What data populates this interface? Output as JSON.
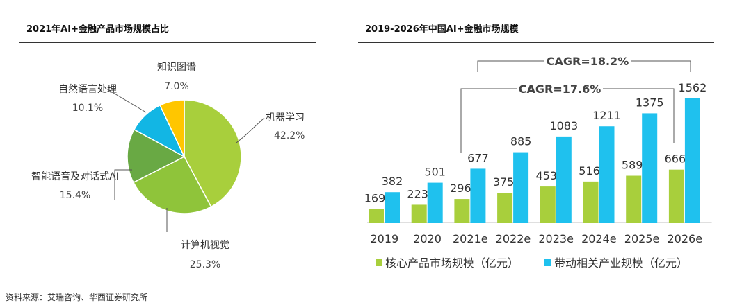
{
  "left_panel": {
    "title": "2021年AI+金融产品市场规模占比"
  },
  "right_panel": {
    "title": "2019-2026年中国AI+金融市场规模"
  },
  "source": "资料来源：艾瑞咨询、华西证券研究所",
  "chart_data": [
    {
      "type": "pie",
      "title": "2021年AI+金融产品市场规模占比",
      "slices": [
        {
          "label": "机器学习",
          "value": 42.2,
          "display": "42.2%",
          "color": "#a8cf3c"
        },
        {
          "label": "计算机视觉",
          "value": 25.3,
          "display": "25.3%",
          "color": "#8fc43a"
        },
        {
          "label": "智能语音及对话式AI",
          "value": 15.4,
          "display": "15.4%",
          "color": "#69a944"
        },
        {
          "label": "自然语言处理",
          "value": 10.1,
          "display": "10.1%",
          "color": "#12b6e4"
        },
        {
          "label": "知识图谱",
          "value": 7.0,
          "display": "7.0%",
          "color": "#ffc600"
        }
      ]
    },
    {
      "type": "bar",
      "title": "2019-2026年中国AI+金融市场规模",
      "categories": [
        "2019",
        "2020",
        "2021e",
        "2022e",
        "2023e",
        "2024e",
        "2025e",
        "2026e"
      ],
      "series": [
        {
          "name": "核心产品市场规模（亿元）",
          "color": "#a8cf3c",
          "values": [
            169,
            223,
            296,
            375,
            453,
            516,
            589,
            666
          ]
        },
        {
          "name": "带动相关产业规模（亿元）",
          "color": "#1fc1ee",
          "values": [
            382,
            501,
            677,
            885,
            1083,
            1211,
            1375,
            1562
          ]
        }
      ],
      "annotations": [
        {
          "text": "CAGR=18.2%",
          "from": "2021e",
          "to": "2026e",
          "series": "带动相关产业规模（亿元）"
        },
        {
          "text": "CAGR=17.6%",
          "from": "2021e",
          "to": "2026e",
          "series": "核心产品市场规模（亿元）"
        }
      ]
    }
  ]
}
